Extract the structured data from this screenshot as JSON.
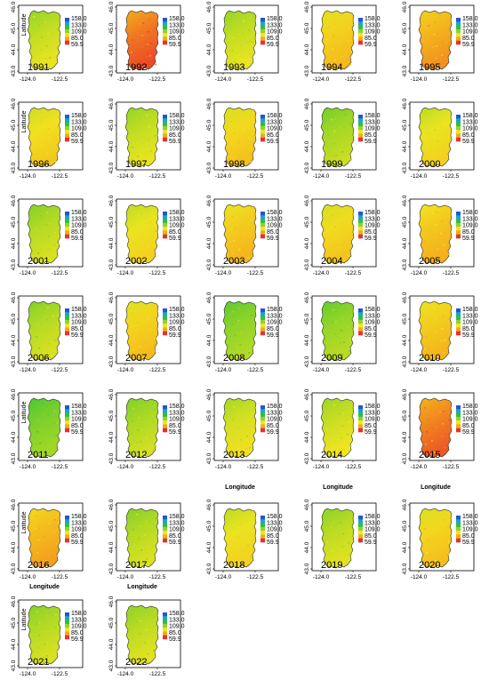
{
  "axes": {
    "y_ticks": [
      "43.0",
      "44.0",
      "45.0",
      "46.0"
    ],
    "x_ticks": [
      "-124.0",
      "-122.5"
    ],
    "ylabel": "Latitude",
    "xlabel": "Longitude"
  },
  "legend": {
    "labels": [
      "158.0",
      "133.0",
      "109.0",
      "85.0",
      "59.9"
    ]
  },
  "colors": {
    "low": "#e8322a",
    "mid_low": "#f5a81c",
    "mid": "#f2e51f",
    "mid_high": "#8fd428",
    "high": "#2fbf3a",
    "very_high": "#1aa7c8",
    "top": "#2255d8"
  },
  "chart_data": {
    "type": "heatmap",
    "title": "",
    "xlabel": "Longitude",
    "ylabel": "Latitude",
    "xlim": [
      -124.0,
      -122.5
    ],
    "ylim": [
      43.0,
      46.0
    ],
    "legend_range": [
      59.9,
      158.0
    ],
    "legend_ticks": [
      158.0,
      133.0,
      109.0,
      85.0,
      59.9
    ],
    "panels": [
      {
        "year": "1991",
        "level": 0.62
      },
      {
        "year": "1992",
        "level": 0.15
      },
      {
        "year": "1993",
        "level": 0.62
      },
      {
        "year": "1994",
        "level": 0.42
      },
      {
        "year": "1995",
        "level": 0.3
      },
      {
        "year": "1996",
        "level": 0.48
      },
      {
        "year": "1997",
        "level": 0.62
      },
      {
        "year": "1998",
        "level": 0.45
      },
      {
        "year": "1999",
        "level": 0.7
      },
      {
        "year": "2000",
        "level": 0.52
      },
      {
        "year": "2001",
        "level": 0.66
      },
      {
        "year": "2002",
        "level": 0.52
      },
      {
        "year": "2003",
        "level": 0.4
      },
      {
        "year": "2004",
        "level": 0.46
      },
      {
        "year": "2005",
        "level": 0.38
      },
      {
        "year": "2006",
        "level": 0.66
      },
      {
        "year": "2007",
        "level": 0.43
      },
      {
        "year": "2008",
        "level": 0.76
      },
      {
        "year": "2009",
        "level": 0.74
      },
      {
        "year": "2010",
        "level": 0.4
      },
      {
        "year": "2011",
        "level": 0.8
      },
      {
        "year": "2012",
        "level": 0.68
      },
      {
        "year": "2013",
        "level": 0.58
      },
      {
        "year": "2014",
        "level": 0.6
      },
      {
        "year": "2015",
        "level": 0.18
      },
      {
        "year": "2016",
        "level": 0.33
      },
      {
        "year": "2017",
        "level": 0.66
      },
      {
        "year": "2018",
        "level": 0.52
      },
      {
        "year": "2019",
        "level": 0.64
      },
      {
        "year": "2020",
        "level": 0.44
      },
      {
        "year": "2021",
        "level": 0.66
      },
      {
        "year": "2022",
        "level": 0.64
      }
    ]
  }
}
